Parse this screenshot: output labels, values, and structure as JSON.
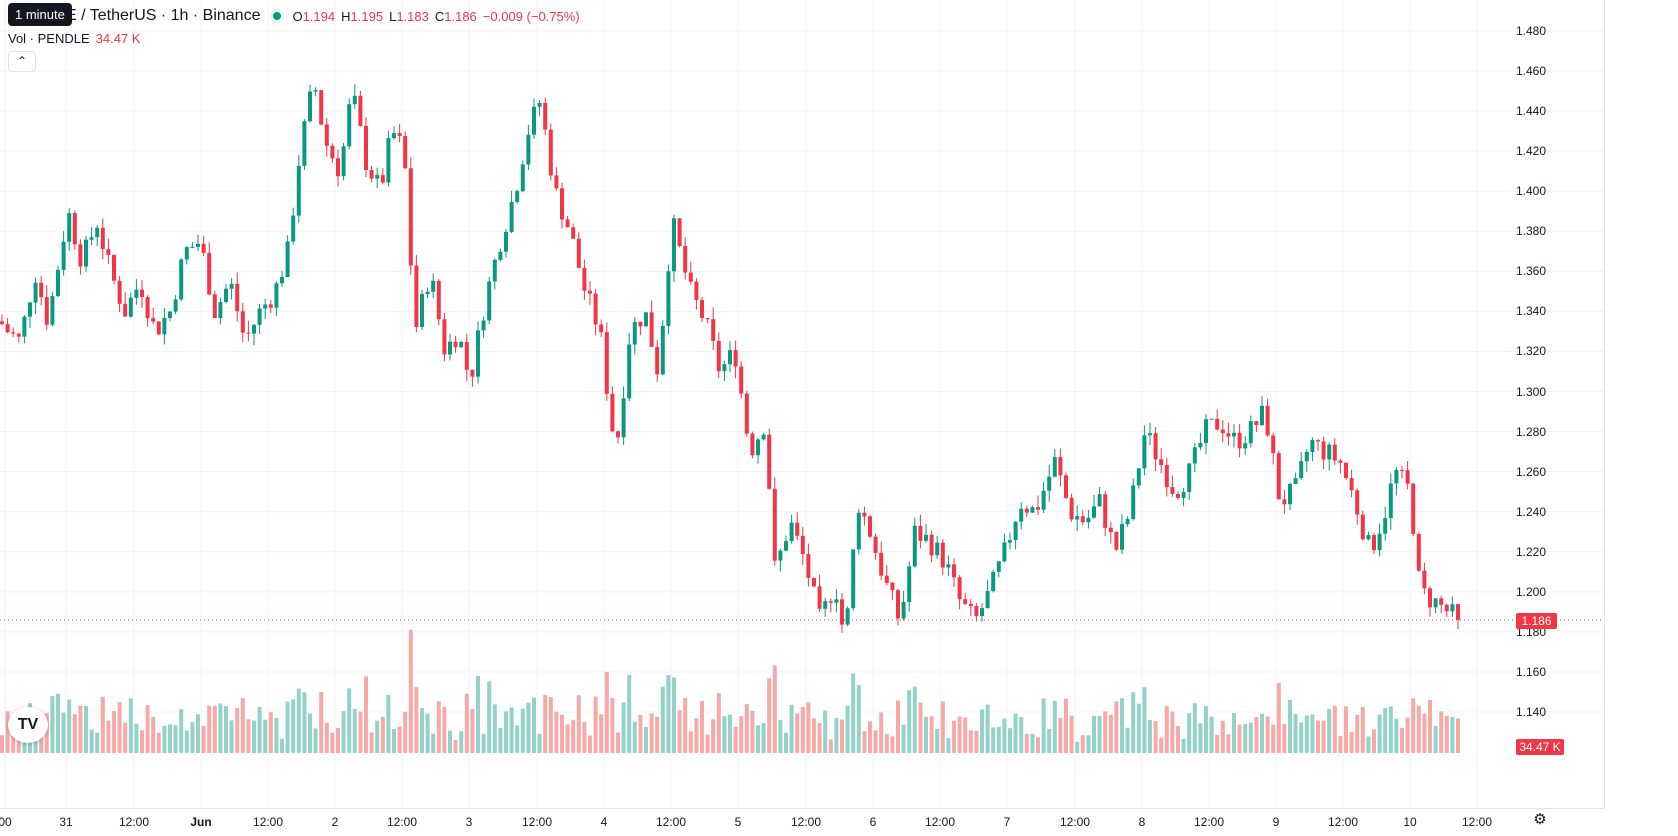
{
  "legend": {
    "title": "E / TetherUS · 1h · Binance",
    "tooltip": "1 minute",
    "open_label": "O",
    "open": "1.194",
    "high_label": "H",
    "high": "1.195",
    "low_label": "L",
    "low": "1.183",
    "close_label": "C",
    "close": "1.186",
    "change": "−0.009 (−0.75%)",
    "vol_label": "Vol · PENDLE",
    "vol_value": "34.47 K",
    "collapse_icon": "chevron-up-icon"
  },
  "colors": {
    "up": "#089981",
    "down": "#f23645",
    "vol_up": "#93d2c7",
    "vol_down": "#f7a9a7",
    "grid": "#f0f3fa"
  },
  "price_axis": {
    "labels": [
      "1.480",
      "1.460",
      "1.440",
      "1.420",
      "1.400",
      "1.380",
      "1.360",
      "1.340",
      "1.320",
      "1.300",
      "1.280",
      "1.260",
      "1.240",
      "1.220",
      "1.200",
      "1.180",
      "1.160",
      "1.140"
    ],
    "last_price": "1.186",
    "last_volume": "34.47 K"
  },
  "time_axis": {
    "labels": [
      "00",
      "31",
      "12:00",
      "Jun",
      "12:00",
      "2",
      "12:00",
      "3",
      "12:00",
      "4",
      "12:00",
      "5",
      "12:00",
      "6",
      "12:00",
      "7",
      "12:00",
      "8",
      "12:00",
      "9",
      "12:00",
      "10",
      "12:00"
    ]
  },
  "chart_data": {
    "type": "candlestick",
    "symbol": "E / TetherUS",
    "interval": "1h",
    "exchange": "Binance",
    "ylim": [
      1.13,
      1.49
    ],
    "anchors": [
      [
        0,
        1.335
      ],
      [
        8,
        1.33
      ],
      [
        20,
        1.325
      ],
      [
        35,
        1.36
      ],
      [
        48,
        1.335
      ],
      [
        68,
        1.39
      ],
      [
        82,
        1.365
      ],
      [
        97,
        1.385
      ],
      [
        110,
        1.36
      ],
      [
        125,
        1.34
      ],
      [
        140,
        1.355
      ],
      [
        155,
        1.33
      ],
      [
        170,
        1.34
      ],
      [
        185,
        1.37
      ],
      [
        200,
        1.375
      ],
      [
        215,
        1.34
      ],
      [
        230,
        1.355
      ],
      [
        245,
        1.325
      ],
      [
        260,
        1.34
      ],
      [
        275,
        1.35
      ],
      [
        288,
        1.37
      ],
      [
        300,
        1.42
      ],
      [
        314,
        1.455
      ],
      [
        325,
        1.425
      ],
      [
        340,
        1.41
      ],
      [
        352,
        1.45
      ],
      [
        366,
        1.415
      ],
      [
        380,
        1.4
      ],
      [
        392,
        1.43
      ],
      [
        404,
        1.42
      ],
      [
        415,
        1.33
      ],
      [
        430,
        1.36
      ],
      [
        445,
        1.32
      ],
      [
        458,
        1.33
      ],
      [
        470,
        1.305
      ],
      [
        485,
        1.345
      ],
      [
        500,
        1.375
      ],
      [
        515,
        1.4
      ],
      [
        528,
        1.43
      ],
      [
        540,
        1.445
      ],
      [
        555,
        1.4
      ],
      [
        570,
        1.38
      ],
      [
        585,
        1.35
      ],
      [
        600,
        1.33
      ],
      [
        610,
        1.29
      ],
      [
        616,
        1.27
      ],
      [
        630,
        1.33
      ],
      [
        645,
        1.34
      ],
      [
        658,
        1.31
      ],
      [
        672,
        1.385
      ],
      [
        690,
        1.35
      ],
      [
        705,
        1.335
      ],
      [
        720,
        1.31
      ],
      [
        735,
        1.32
      ],
      [
        750,
        1.27
      ],
      [
        765,
        1.285
      ],
      [
        775,
        1.21
      ],
      [
        790,
        1.235
      ],
      [
        805,
        1.215
      ],
      [
        820,
        1.185
      ],
      [
        835,
        1.205
      ],
      [
        845,
        1.175
      ],
      [
        858,
        1.245
      ],
      [
        870,
        1.23
      ],
      [
        885,
        1.205
      ],
      [
        900,
        1.185
      ],
      [
        915,
        1.23
      ],
      [
        930,
        1.225
      ],
      [
        945,
        1.215
      ],
      [
        960,
        1.195
      ],
      [
        975,
        1.185
      ],
      [
        990,
        1.2
      ],
      [
        1005,
        1.22
      ],
      [
        1020,
        1.245
      ],
      [
        1035,
        1.24
      ],
      [
        1055,
        1.265
      ],
      [
        1070,
        1.24
      ],
      [
        1085,
        1.235
      ],
      [
        1100,
        1.245
      ],
      [
        1115,
        1.22
      ],
      [
        1130,
        1.24
      ],
      [
        1145,
        1.28
      ],
      [
        1160,
        1.265
      ],
      [
        1175,
        1.25
      ],
      [
        1190,
        1.26
      ],
      [
        1205,
        1.28
      ],
      [
        1220,
        1.285
      ],
      [
        1235,
        1.275
      ],
      [
        1250,
        1.28
      ],
      [
        1265,
        1.29
      ],
      [
        1280,
        1.245
      ],
      [
        1295,
        1.25
      ],
      [
        1310,
        1.275
      ],
      [
        1325,
        1.27
      ],
      [
        1340,
        1.265
      ],
      [
        1355,
        1.245
      ],
      [
        1370,
        1.22
      ],
      [
        1385,
        1.24
      ],
      [
        1395,
        1.26
      ],
      [
        1410,
        1.25
      ],
      [
        1420,
        1.2
      ],
      [
        1435,
        1.195
      ],
      [
        1448,
        1.19
      ],
      [
        1458,
        1.186
      ]
    ],
    "last": {
      "open": 1.194,
      "high": 1.195,
      "low": 1.183,
      "close": 1.186,
      "volume": "34.47 K"
    }
  }
}
